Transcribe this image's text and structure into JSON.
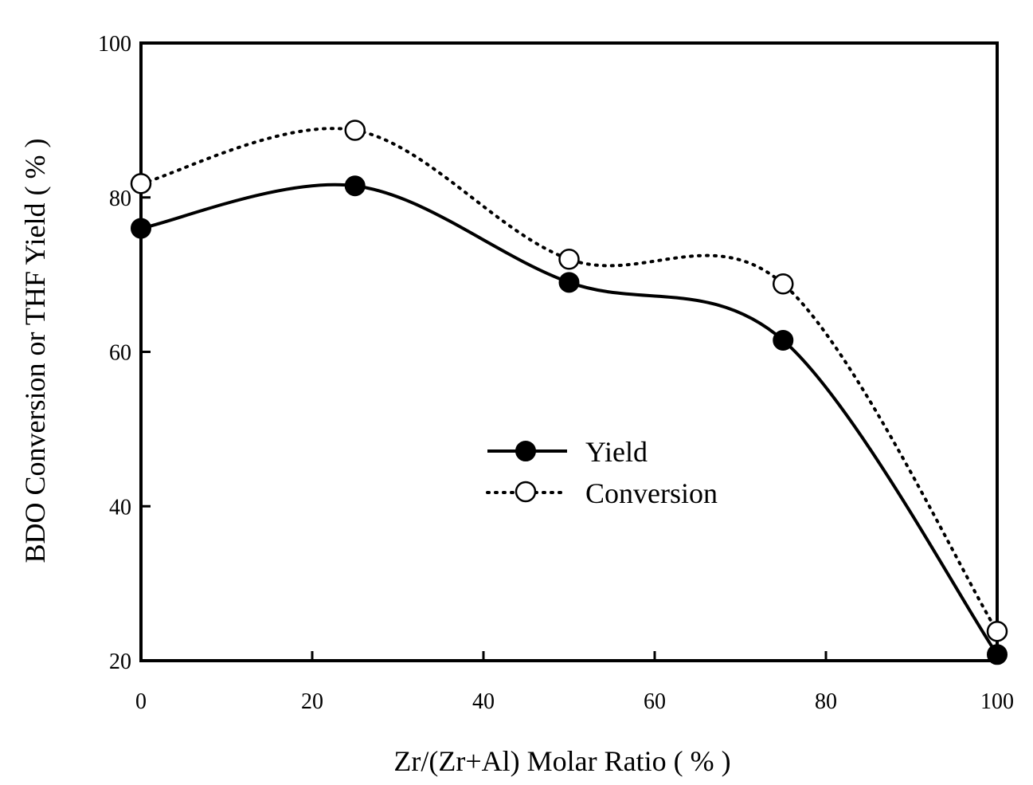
{
  "chart_data": {
    "type": "line",
    "title": "",
    "xlabel": "Zr/(Zr+Al) Molar Ratio  ( % )",
    "ylabel": "BDO  Conversion  or  THF  Yield ( % )",
    "xlim": [
      0,
      100
    ],
    "ylim": [
      20,
      100
    ],
    "xticks": [
      0,
      20,
      40,
      60,
      80,
      100
    ],
    "yticks": [
      20,
      40,
      60,
      80,
      100
    ],
    "x": [
      0,
      25,
      50,
      75,
      100
    ],
    "series": [
      {
        "name": "Yield",
        "values": [
          76,
          81.5,
          69,
          61.5,
          20.8
        ],
        "marker": "filled-circle",
        "line": "solid"
      },
      {
        "name": "Conversion",
        "values": [
          81.8,
          88.7,
          72,
          68.8,
          23.8
        ],
        "marker": "open-circle",
        "line": "dotted"
      }
    ],
    "legend": {
      "position": "center",
      "entries": [
        "Yield",
        "Conversion"
      ]
    },
    "grid": false
  }
}
